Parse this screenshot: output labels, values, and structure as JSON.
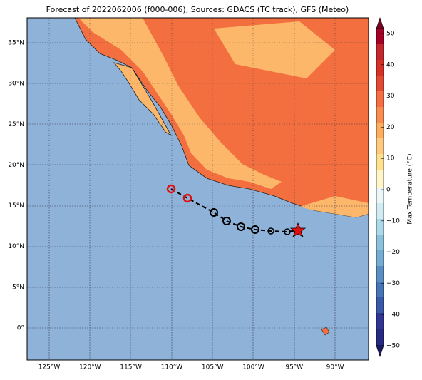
{
  "title": "Forecast of 2022062006 (f000-006), Sources: GDACS (TC track), GFS (Meteo)",
  "map": {
    "lat_labels": [
      "35°N",
      "30°N",
      "25°N",
      "20°N",
      "15°N",
      "10°N",
      "5°N",
      "0°"
    ],
    "lon_labels": [
      "125°W",
      "120°W",
      "115°W",
      "110°W",
      "105°W",
      "100°W",
      "95°W",
      "90°W"
    ]
  },
  "colorbar": {
    "label": "Max Temperature (°C)",
    "ticks": [
      "50",
      "40",
      "30",
      "20",
      "10",
      "0",
      "−10",
      "−20",
      "−30",
      "−40",
      "−50"
    ]
  }
}
